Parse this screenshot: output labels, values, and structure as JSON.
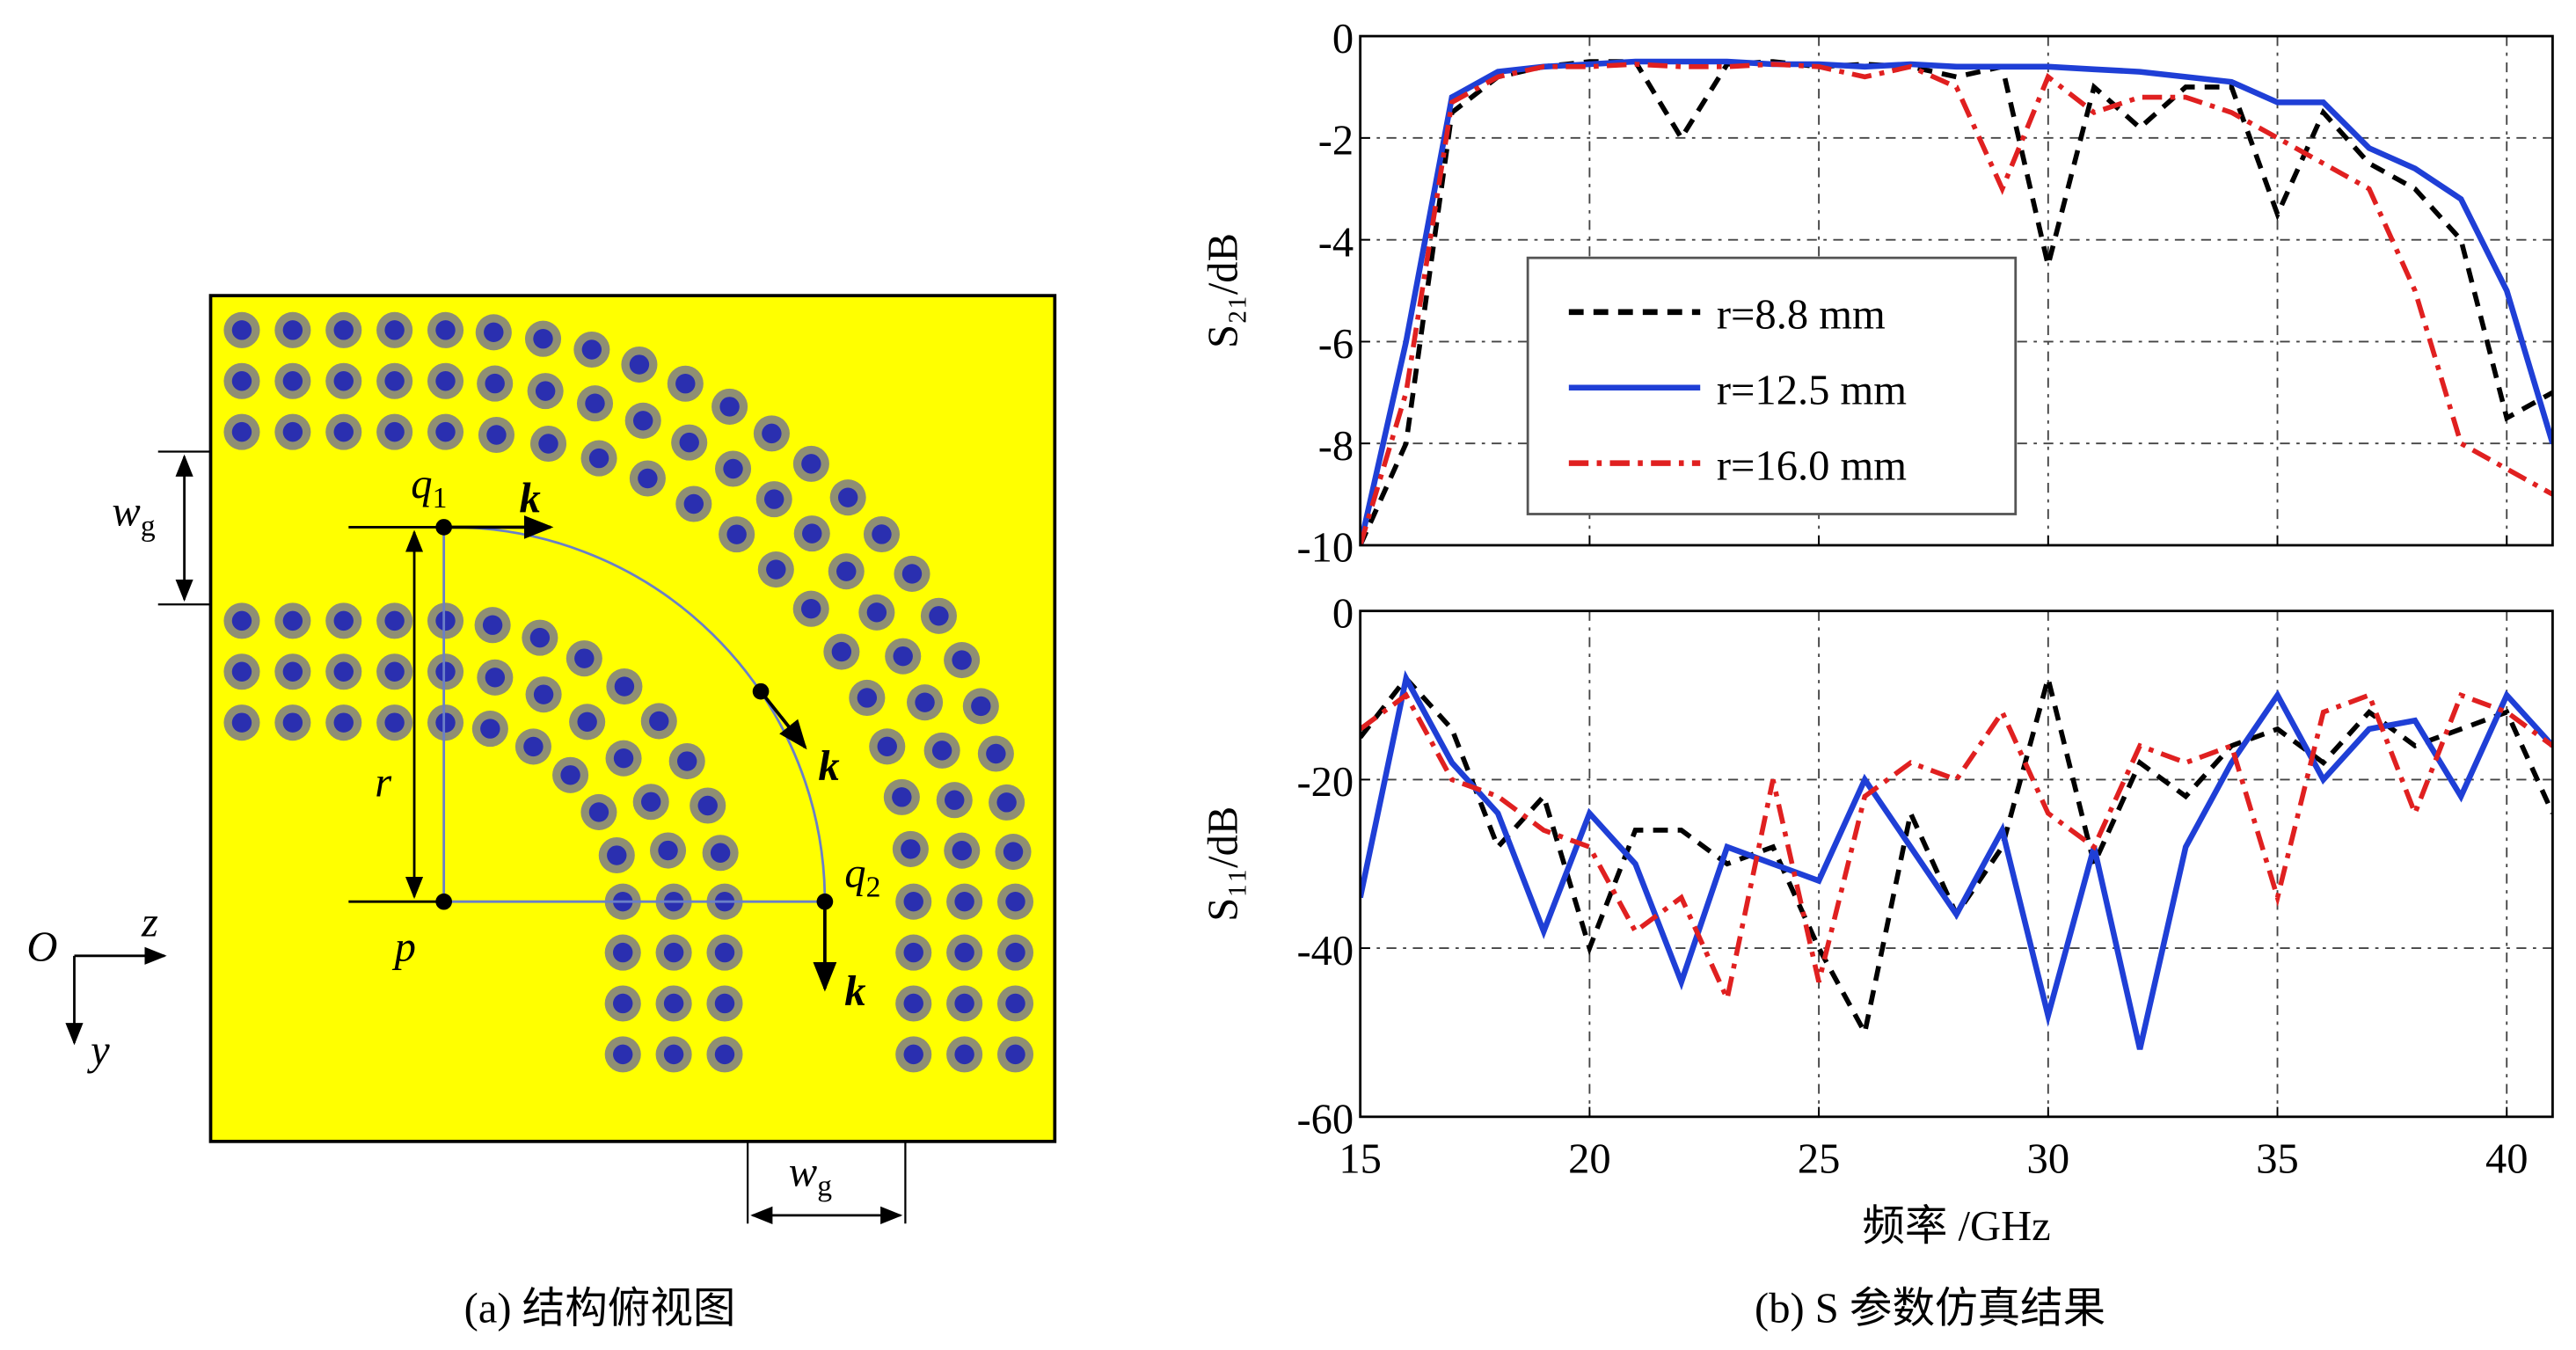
{
  "diagram": {
    "labels": {
      "wg_left": {
        "text": "w",
        "sub": "g"
      },
      "wg_bottom": {
        "text": "w",
        "sub": "g"
      },
      "q1": {
        "text": "q",
        "sub": "1"
      },
      "q2": {
        "text": "q",
        "sub": "2"
      },
      "k1": "k",
      "k2": "k",
      "k3": "k",
      "r": "r",
      "p": "p",
      "O": "O",
      "z": "z",
      "y": "y"
    },
    "caption": "(a) 结构俯视图"
  },
  "caption": "(b) S 参数仿真结果",
  "chart_data": [
    {
      "type": "line",
      "ylabel": "S₂₁/dB",
      "x": [
        15,
        16,
        17,
        18,
        19,
        20,
        21,
        22,
        23,
        24,
        25,
        26,
        27,
        28,
        29,
        30,
        31,
        32,
        33,
        34,
        35,
        36,
        37,
        38,
        39,
        40,
        41
      ],
      "xlim": [
        15,
        41
      ],
      "xticks": [
        15,
        20,
        25,
        30,
        35,
        40
      ],
      "ylim": [
        -10,
        0
      ],
      "yticks": [
        0,
        -2,
        -4,
        -6,
        -8,
        -10
      ],
      "grid": true,
      "legend": "center-left",
      "series": [
        {
          "name": "r=8.8 mm",
          "color": "#000000",
          "dash": "dashed",
          "values": [
            -10,
            -8,
            -1.5,
            -0.8,
            -0.6,
            -0.5,
            -0.5,
            -2,
            -0.55,
            -0.5,
            -0.6,
            -0.55,
            -0.6,
            -0.8,
            -0.6,
            -4.5,
            -1,
            -1.8,
            -1,
            -1,
            -3.5,
            -1.5,
            -2.5,
            -3,
            -4,
            -7.5,
            -7
          ]
        },
        {
          "name": "r=12.5 mm",
          "color": "#1f3fd6",
          "dash": "solid",
          "values": [
            -10,
            -6,
            -1.2,
            -0.7,
            -0.6,
            -0.55,
            -0.5,
            -0.5,
            -0.5,
            -0.55,
            -0.55,
            -0.6,
            -0.55,
            -0.6,
            -0.6,
            -0.6,
            -0.65,
            -0.7,
            -0.8,
            -0.9,
            -1.3,
            -1.3,
            -2.2,
            -2.6,
            -3.2,
            -5,
            -8
          ]
        },
        {
          "name": "r=16.0 mm",
          "color": "#e02020",
          "dash": "dashdot",
          "values": [
            -10,
            -7,
            -1.3,
            -0.8,
            -0.6,
            -0.6,
            -0.55,
            -0.6,
            -0.6,
            -0.55,
            -0.6,
            -0.8,
            -0.6,
            -1,
            -3,
            -0.8,
            -1.5,
            -1.2,
            -1.2,
            -1.5,
            -2,
            -2.5,
            -3,
            -5,
            -8,
            -8.5,
            -9
          ]
        }
      ]
    },
    {
      "type": "line",
      "ylabel": "S₁₁/dB",
      "xlabel": "频率 /GHz",
      "x": [
        15,
        16,
        17,
        18,
        19,
        20,
        21,
        22,
        23,
        24,
        25,
        26,
        27,
        28,
        29,
        30,
        31,
        32,
        33,
        34,
        35,
        36,
        37,
        38,
        39,
        40,
        41
      ],
      "xlim": [
        15,
        41
      ],
      "xticks": [
        15,
        20,
        25,
        30,
        35,
        40
      ],
      "ylim": [
        -60,
        0
      ],
      "yticks": [
        0,
        -20,
        -40,
        -60
      ],
      "grid": true,
      "series": [
        {
          "color": "#000000",
          "dash": "dashed",
          "values": [
            -15,
            -8,
            -14,
            -28,
            -22,
            -40,
            -26,
            -26,
            -30,
            -28,
            -40,
            -50,
            -24,
            -36,
            -28,
            -8,
            -30,
            -18,
            -22,
            -16,
            -14,
            -18,
            -12,
            -16,
            -14,
            -12,
            -24
          ]
        },
        {
          "color": "#1f3fd6",
          "dash": "solid",
          "values": [
            -34,
            -8,
            -18,
            -24,
            -38,
            -24,
            -30,
            -44,
            -28,
            -30,
            -32,
            -20,
            -28,
            -36,
            -26,
            -48,
            -28,
            -52,
            -28,
            -18,
            -10,
            -20,
            -14,
            -13,
            -22,
            -10,
            -16
          ]
        },
        {
          "color": "#e02020",
          "dash": "dashdot",
          "values": [
            -14,
            -10,
            -20,
            -22,
            -26,
            -28,
            -38,
            -34,
            -46,
            -20,
            -44,
            -22,
            -18,
            -20,
            -12,
            -24,
            -28,
            -16,
            -18,
            -16,
            -34,
            -12,
            -10,
            -24,
            -10,
            -12,
            -16
          ]
        }
      ]
    }
  ]
}
